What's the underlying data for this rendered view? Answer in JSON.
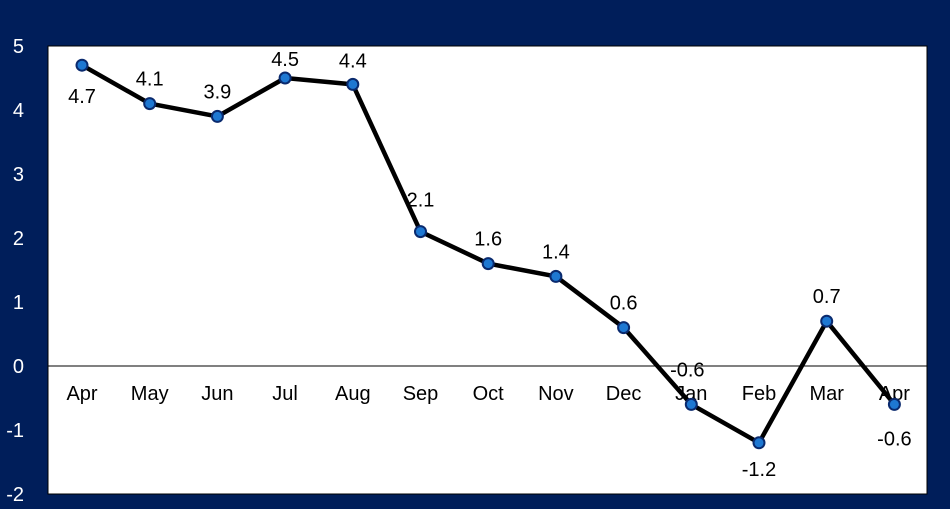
{
  "chart_data": {
    "type": "line",
    "title": "",
    "xlabel": "",
    "ylabel": "",
    "ylim": [
      -2,
      5
    ],
    "yticks": [
      "5",
      "4",
      "3",
      "2",
      "1",
      "0",
      "-1",
      "-2"
    ],
    "categories": [
      "Apr",
      "May",
      "Jun",
      "Jul",
      "Aug",
      "Sep",
      "Oct",
      "Nov",
      "Dec",
      "Jan",
      "Feb",
      "Mar",
      "Apr"
    ],
    "series": [
      {
        "values": [
          4.7,
          4.1,
          3.9,
          4.5,
          4.4,
          2.1,
          1.6,
          1.4,
          0.6,
          -0.6,
          -1.2,
          0.7,
          -0.6
        ],
        "labels": [
          "4.7",
          "4.1",
          "3.9",
          "4.5",
          "4.4",
          "2.1",
          "1.6",
          "1.4",
          "0.6",
          "-0.6",
          "-1.2",
          "0.7",
          "-0.6"
        ]
      }
    ],
    "grid": false,
    "legend": "none",
    "colors": {
      "frame_background": "#001e5a",
      "plot_background": "#ffffff",
      "line": "#000000",
      "marker_fill": "#1e78d2",
      "marker_stroke": "#0a2a6e",
      "axis_tick_text": "#ffffff"
    }
  }
}
